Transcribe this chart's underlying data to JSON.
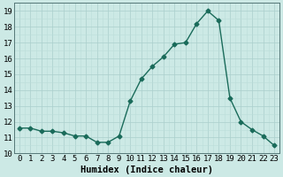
{
  "x": [
    0,
    1,
    2,
    3,
    4,
    5,
    6,
    7,
    8,
    9,
    10,
    11,
    12,
    13,
    14,
    15,
    16,
    17,
    18,
    19,
    20,
    21,
    22,
    23
  ],
  "y": [
    11.6,
    11.6,
    11.4,
    11.4,
    11.3,
    11.1,
    11.1,
    10.7,
    10.7,
    11.1,
    13.3,
    14.7,
    15.5,
    16.1,
    16.9,
    17.0,
    18.2,
    19.0,
    18.4,
    13.5,
    12.0,
    11.5,
    11.1,
    10.5
  ],
  "line_color": "#1a6b5a",
  "marker": "D",
  "marker_size": 2.5,
  "bg_color": "#cce9e5",
  "grid_color_major": "#aacfcc",
  "grid_color_minor": "#bbddd9",
  "xlabel": "Humidex (Indice chaleur)",
  "xlim": [
    -0.5,
    23.5
  ],
  "ylim": [
    10,
    19.5
  ],
  "yticks": [
    10,
    11,
    12,
    13,
    14,
    15,
    16,
    17,
    18,
    19
  ],
  "xticks": [
    0,
    1,
    2,
    3,
    4,
    5,
    6,
    7,
    8,
    9,
    10,
    11,
    12,
    13,
    14,
    15,
    16,
    17,
    18,
    19,
    20,
    21,
    22,
    23
  ],
  "tick_fontsize": 6.5,
  "label_fontsize": 7.5,
  "linewidth": 1.0
}
